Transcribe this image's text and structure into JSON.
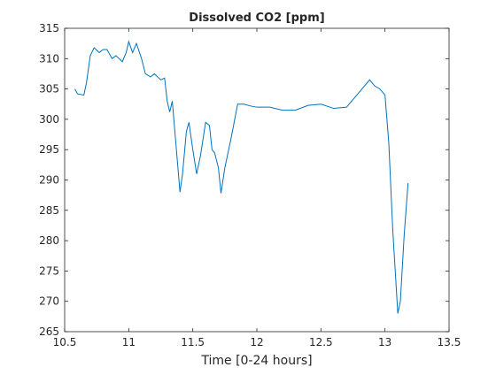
{
  "chart_data": {
    "type": "line",
    "title": "Dissolved CO2 [ppm]",
    "x_label": "Time [0-24 hours]",
    "x": [
      10.58,
      10.6,
      10.65,
      10.67,
      10.7,
      10.73,
      10.77,
      10.8,
      10.83,
      10.87,
      10.9,
      10.95,
      10.98,
      11.0,
      11.03,
      11.06,
      11.1,
      11.13,
      11.17,
      11.2,
      11.25,
      11.28,
      11.3,
      11.32,
      11.34,
      11.36,
      11.38,
      11.4,
      11.42,
      11.45,
      11.47,
      11.5,
      11.53,
      11.56,
      11.6,
      11.63,
      11.65,
      11.67,
      11.7,
      11.72,
      11.75,
      11.8,
      11.85,
      11.9,
      11.95,
      12.0,
      12.1,
      12.2,
      12.3,
      12.4,
      12.5,
      12.6,
      12.7,
      12.8,
      12.88,
      12.92,
      12.96,
      13.0,
      13.03,
      13.06,
      13.1,
      13.12,
      13.15,
      13.18
    ],
    "series": [
      {
        "name": "CO2",
        "color": "#0072bd",
        "values": [
          305,
          304.2,
          304,
          306,
          310.5,
          311.8,
          311,
          311.5,
          311.5,
          310,
          310.5,
          309.5,
          311,
          312.8,
          311,
          312.5,
          310,
          307.5,
          307,
          307.5,
          306.5,
          306.8,
          303,
          301.2,
          303,
          298,
          293,
          288,
          291,
          298,
          299.5,
          295,
          291,
          294,
          299.5,
          299,
          295,
          294.5,
          292,
          287.8,
          292,
          297,
          302.5,
          302.5,
          302.2,
          302,
          302,
          301.5,
          301.5,
          302.3,
          302.5,
          301.8,
          302,
          304.5,
          306.5,
          305.5,
          305,
          304,
          296,
          282,
          268,
          270,
          281,
          289.5
        ]
      }
    ],
    "xlim": [
      10.5,
      13.5
    ],
    "xticks": [
      10.5,
      11,
      11.5,
      12,
      12.5,
      13,
      13.5
    ],
    "ylim": [
      265,
      315
    ],
    "yticks": [
      265,
      270,
      275,
      280,
      285,
      290,
      295,
      300,
      305,
      310,
      315
    ]
  }
}
